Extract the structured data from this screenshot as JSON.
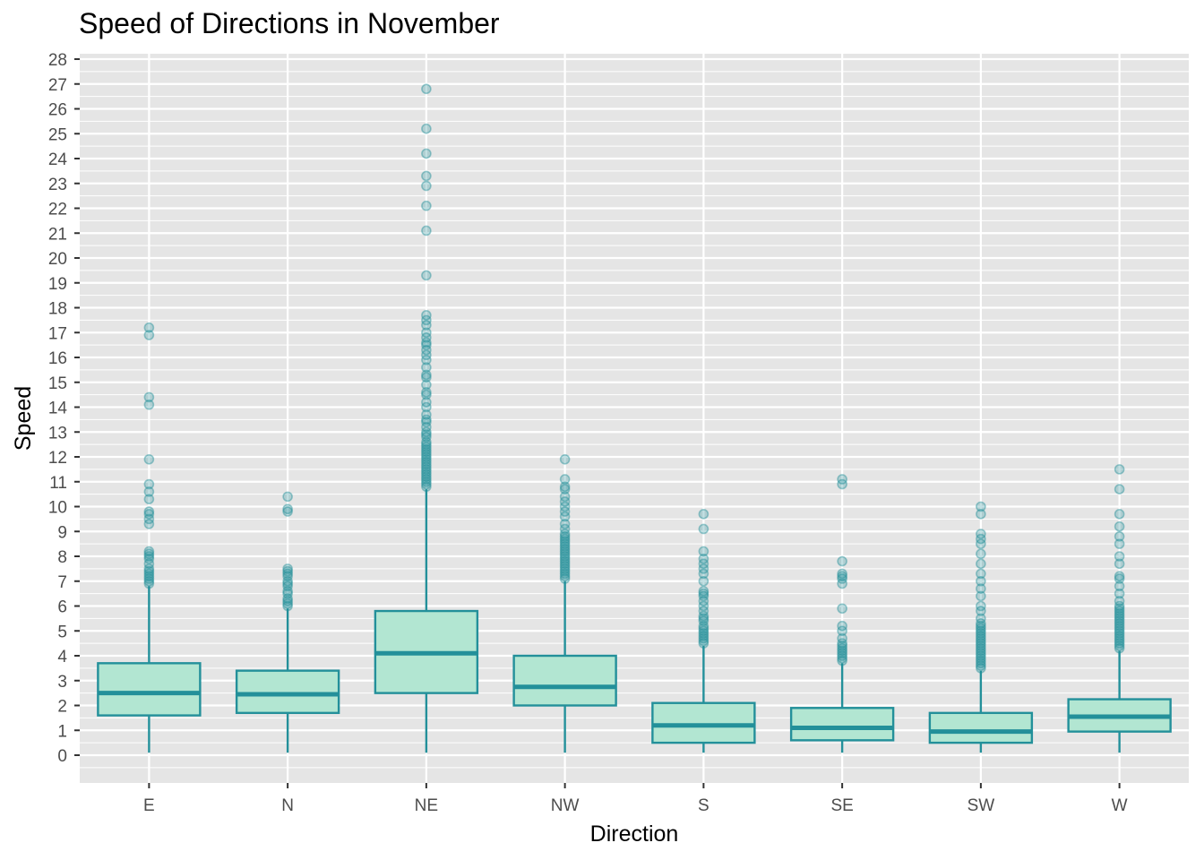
{
  "chart_data": {
    "type": "boxplot",
    "title": "Speed of Directions in November",
    "xlabel": "Direction",
    "ylabel": "Speed",
    "ylim": [
      -1.2,
      28.2
    ],
    "y_ticks": [
      0,
      1,
      2,
      3,
      4,
      5,
      6,
      7,
      8,
      9,
      10,
      11,
      12,
      13,
      14,
      15,
      16,
      17,
      18,
      19,
      20,
      21,
      22,
      23,
      24,
      25,
      26,
      27,
      28
    ],
    "grid": true,
    "colors": {
      "panel": "#e5e5e5",
      "grid": "#ffffff",
      "box_fill": "#b2e6d2",
      "box_stroke": "#23909a",
      "outlier": "#23909a"
    },
    "categories": [
      "E",
      "N",
      "NE",
      "NW",
      "S",
      "SE",
      "SW",
      "W"
    ],
    "boxes": [
      {
        "category": "E",
        "min": 0.1,
        "q1": 1.6,
        "median": 2.5,
        "q3": 3.7,
        "max": 6.8,
        "outliers": [
          6.9,
          7.0,
          7.1,
          7.2,
          7.3,
          7.4,
          7.5,
          7.7,
          7.9,
          8.0,
          8.1,
          8.2,
          9.3,
          9.5,
          9.7,
          9.8,
          10.3,
          10.6,
          10.9,
          11.9,
          14.1,
          14.4,
          16.9,
          17.2
        ]
      },
      {
        "category": "N",
        "min": 0.1,
        "q1": 1.7,
        "median": 2.45,
        "q3": 3.4,
        "max": 5.9,
        "outliers": [
          6.0,
          6.1,
          6.2,
          6.3,
          6.5,
          6.6,
          6.8,
          6.9,
          7.0,
          7.2,
          7.3,
          7.4,
          7.5,
          9.8,
          9.9,
          10.4
        ]
      },
      {
        "category": "NE",
        "min": 0.1,
        "q1": 2.5,
        "median": 4.1,
        "q3": 5.8,
        "max": 10.7,
        "outliers": [
          10.8,
          10.9,
          11.0,
          11.1,
          11.2,
          11.3,
          11.4,
          11.5,
          11.6,
          11.7,
          11.8,
          11.9,
          12.0,
          12.1,
          12.2,
          12.3,
          12.4,
          12.5,
          12.6,
          12.8,
          12.9,
          13.0,
          13.2,
          13.4,
          13.5,
          13.7,
          14.0,
          14.2,
          14.5,
          14.6,
          14.9,
          15.2,
          15.3,
          15.6,
          15.9,
          16.1,
          16.3,
          16.5,
          16.6,
          16.8,
          17.0,
          17.3,
          17.5,
          17.7,
          19.3,
          21.1,
          22.1,
          22.9,
          23.3,
          24.2,
          25.2,
          26.8
        ]
      },
      {
        "category": "NW",
        "min": 0.1,
        "q1": 2.0,
        "median": 2.75,
        "q3": 4.0,
        "max": 7.0,
        "outliers": [
          7.1,
          7.2,
          7.3,
          7.4,
          7.5,
          7.6,
          7.7,
          7.8,
          7.9,
          8.0,
          8.1,
          8.2,
          8.3,
          8.4,
          8.5,
          8.6,
          8.7,
          8.8,
          8.9,
          9.1,
          9.3,
          9.6,
          9.8,
          10.0,
          10.2,
          10.4,
          10.7,
          10.8,
          11.1,
          11.9
        ]
      },
      {
        "category": "S",
        "min": 0.1,
        "q1": 0.5,
        "median": 1.2,
        "q3": 2.1,
        "max": 4.4,
        "outliers": [
          4.5,
          4.6,
          4.7,
          4.8,
          4.9,
          5.0,
          5.1,
          5.2,
          5.4,
          5.5,
          5.6,
          5.8,
          6.0,
          6.2,
          6.4,
          6.5,
          6.6,
          7.0,
          7.3,
          7.5,
          7.7,
          7.9,
          8.2,
          9.1,
          9.7
        ]
      },
      {
        "category": "SE",
        "min": 0.1,
        "q1": 0.6,
        "median": 1.1,
        "q3": 1.9,
        "max": 3.7,
        "outliers": [
          3.8,
          3.9,
          4.0,
          4.1,
          4.2,
          4.3,
          4.4,
          4.5,
          4.7,
          5.0,
          5.2,
          5.9,
          6.9,
          7.1,
          7.2,
          7.3,
          7.8,
          10.9,
          11.1
        ]
      },
      {
        "category": "SW",
        "min": 0.1,
        "q1": 0.5,
        "median": 0.95,
        "q3": 1.7,
        "max": 3.4,
        "outliers": [
          3.5,
          3.6,
          3.7,
          3.8,
          3.9,
          4.0,
          4.1,
          4.2,
          4.3,
          4.4,
          4.5,
          4.6,
          4.7,
          4.8,
          4.9,
          5.0,
          5.1,
          5.2,
          5.3,
          5.5,
          5.8,
          6.0,
          6.4,
          6.7,
          7.0,
          7.3,
          7.7,
          8.1,
          8.5,
          8.7,
          8.9,
          9.7,
          10.0
        ]
      },
      {
        "category": "W",
        "min": 0.1,
        "q1": 0.95,
        "median": 1.55,
        "q3": 2.25,
        "max": 4.2,
        "outliers": [
          4.3,
          4.4,
          4.5,
          4.6,
          4.7,
          4.8,
          4.9,
          5.0,
          5.1,
          5.2,
          5.3,
          5.4,
          5.5,
          5.6,
          5.7,
          5.8,
          5.9,
          6.0,
          6.2,
          6.5,
          6.8,
          7.1,
          7.2,
          7.7,
          8.0,
          8.5,
          8.8,
          9.2,
          9.7,
          10.7,
          11.5
        ]
      }
    ]
  }
}
